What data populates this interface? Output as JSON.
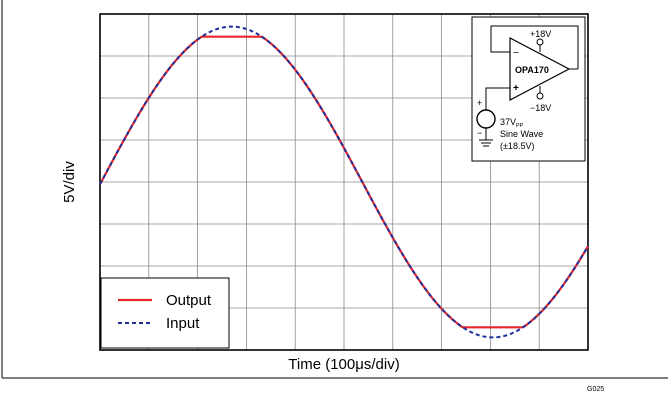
{
  "chart_data": {
    "type": "line",
    "title": "",
    "xlabel": "Time (100μs/div)",
    "ylabel": "5V/div",
    "x_divisions": 10,
    "y_divisions": 8,
    "xlim": [
      0,
      10
    ],
    "ylim": [
      -20,
      20
    ],
    "grid": true,
    "legend": {
      "placement": "bottom-left",
      "entries": [
        {
          "name": "Output",
          "color": "#e8262b",
          "style": "solid"
        },
        {
          "name": "Input",
          "color": "#1f2f9a",
          "style": "dashed"
        }
      ]
    },
    "series": [
      {
        "name": "Input",
        "kind": "sine",
        "amplitude": 18.5,
        "period_divs": 10.7,
        "peak_x": 2.7,
        "offset": 0
      },
      {
        "name": "Output",
        "kind": "clipped-sine",
        "amplitude": 18.5,
        "period_divs": 10.7,
        "peak_x": 2.7,
        "offset": 0,
        "clip_high": 17.3,
        "clip_low": -17.3
      }
    ],
    "inset": {
      "amp_label": "OPA170",
      "vpos": "+18V",
      "vneg": "−18V",
      "minus_sign": "−",
      "plus_sign": "+",
      "src_plus": "+",
      "src_minus": "−",
      "src_value": "37V",
      "src_value_sub": "PP",
      "src_line2": "Sine Wave",
      "src_line3": "(±18.5V)"
    },
    "figure_id": "G025"
  }
}
